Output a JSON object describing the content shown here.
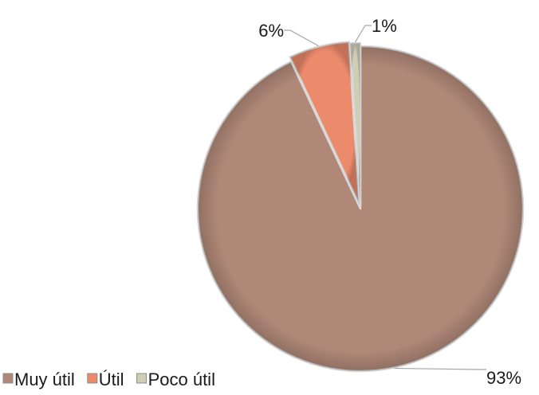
{
  "chart_data": {
    "type": "pie",
    "title": "",
    "categories": [
      "Muy útil",
      "Útil",
      "Poco útil"
    ],
    "values": [
      93,
      6,
      1
    ],
    "data_labels": [
      "93%",
      "6%",
      "1%"
    ],
    "colors": [
      "#b08878",
      "#ec8a6c",
      "#cfcdb4"
    ],
    "legend_position": "bottom-left",
    "start_angle_deg": 0,
    "direction": "clockwise",
    "label_style": "outside-with-leader-lines"
  }
}
